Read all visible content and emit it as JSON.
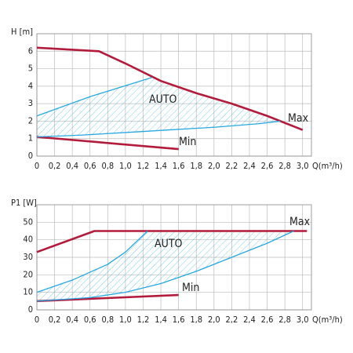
{
  "chart_data": [
    {
      "type": "line",
      "ylabel": "H [m]",
      "xlabel": "Q(m³/h)",
      "annotation": "AUTO",
      "grid": true,
      "xlim": [
        0,
        3.1
      ],
      "ylim": [
        0,
        7
      ],
      "xticks": [
        0,
        {
          "value": 0.2,
          "label": "0,2"
        },
        {
          "value": 0.4,
          "label": "0,4"
        },
        {
          "value": 0.6,
          "label": "0,6"
        },
        {
          "value": 0.8,
          "label": "0,8"
        },
        {
          "value": 1.0,
          "label": "1,0"
        },
        {
          "value": 1.2,
          "label": "1,2"
        },
        {
          "value": 1.4,
          "label": "1,4"
        },
        {
          "value": 1.6,
          "label": "1,6"
        },
        {
          "value": 1.8,
          "label": "1,8"
        },
        {
          "value": 2.0,
          "label": "2,0"
        },
        {
          "value": 2.2,
          "label": "2,2"
        },
        {
          "value": 2.4,
          "label": "2,4"
        },
        {
          "value": 2.6,
          "label": "2,6"
        },
        {
          "value": 2.8,
          "label": "2,8"
        },
        {
          "value": 3.0,
          "label": "3,0"
        }
      ],
      "yticks": [
        0,
        1,
        2,
        3,
        4,
        5,
        6
      ],
      "series": [
        {
          "name": "Max",
          "color": "#b31b3d",
          "x": [
            0,
            0.7,
            1.0,
            1.4,
            1.8,
            2.2,
            2.6,
            3.0
          ],
          "values": [
            6.2,
            6.0,
            5.3,
            4.3,
            3.6,
            3.0,
            2.3,
            1.5
          ]
        },
        {
          "name": "Min",
          "color": "#b31b3d",
          "x": [
            0,
            1.6
          ],
          "values": [
            1.1,
            0.4
          ]
        },
        {
          "color": "#29a8e0",
          "x": [
            0,
            0.6,
            1.3
          ],
          "values": [
            2.3,
            3.4,
            4.5
          ]
        },
        {
          "color": "#29a8e0",
          "x": [
            0,
            0.5,
            1.0,
            1.5,
            2.0,
            2.5,
            2.75
          ],
          "values": [
            1.1,
            1.2,
            1.35,
            1.5,
            1.65,
            1.85,
            2.0
          ]
        }
      ]
    },
    {
      "type": "line",
      "ylabel": "P1 [W]",
      "xlabel": "Q(m³/h)",
      "annotation": "AUTO",
      "grid": true,
      "xlim": [
        0,
        3.1
      ],
      "ylim": [
        0,
        60
      ],
      "xticks": [
        0,
        {
          "value": 0.2,
          "label": "0,2"
        },
        {
          "value": 0.4,
          "label": "0,4"
        },
        {
          "value": 0.6,
          "label": "0,6"
        },
        {
          "value": 0.8,
          "label": "0,8"
        },
        {
          "value": 1.0,
          "label": "1,0"
        },
        {
          "value": 1.2,
          "label": "1,2"
        },
        {
          "value": 1.4,
          "label": "1,4"
        },
        {
          "value": 1.6,
          "label": "1,6"
        },
        {
          "value": 1.8,
          "label": "1,8"
        },
        {
          "value": 2.0,
          "label": "2,0"
        },
        {
          "value": 2.2,
          "label": "2,2"
        },
        {
          "value": 2.4,
          "label": "2,4"
        },
        {
          "value": 2.6,
          "label": "2,6"
        },
        {
          "value": 2.8,
          "label": "2,8"
        },
        {
          "value": 3.0,
          "label": "3,0"
        }
      ],
      "yticks": [
        0,
        10,
        20,
        30,
        40,
        50
      ],
      "series": [
        {
          "name": "Max",
          "color": "#b31b3d",
          "x": [
            0,
            0.65,
            3.05
          ],
          "values": [
            33,
            45,
            45
          ]
        },
        {
          "name": "Min",
          "color": "#b31b3d",
          "x": [
            0,
            1.6
          ],
          "values": [
            5,
            8.5
          ]
        },
        {
          "color": "#29a8e0",
          "x": [
            0,
            0.4,
            0.8,
            1.0,
            1.25
          ],
          "values": [
            10,
            17,
            26,
            33,
            45
          ]
        },
        {
          "color": "#29a8e0",
          "x": [
            0,
            0.6,
            1.0,
            1.4,
            1.8,
            2.2,
            2.6,
            2.9
          ],
          "values": [
            5,
            7,
            10,
            15,
            22,
            30,
            38,
            45
          ]
        }
      ]
    }
  ]
}
